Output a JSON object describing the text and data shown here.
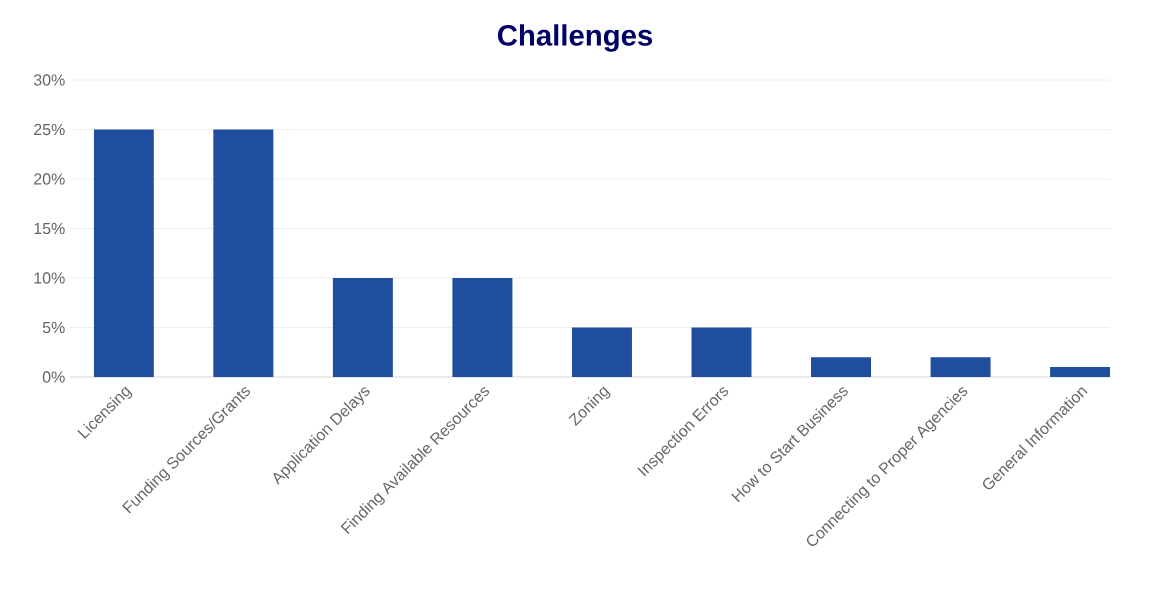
{
  "chart_data": {
    "type": "bar",
    "title": "Challenges",
    "categories": [
      "Licensing",
      "Funding Sources/Grants",
      "Application Delays",
      "Finding Available Resources",
      "Zoning",
      "Inspection Errors",
      "How to Start Business",
      "Connecting to Proper Agencies",
      "General Information"
    ],
    "values": [
      25,
      25,
      10,
      10,
      5,
      5,
      2,
      2,
      1
    ],
    "color": "#1f4e9e",
    "ylim": [
      0,
      30
    ],
    "yticks": [
      {
        "value": 0,
        "label": "0%"
      },
      {
        "value": 5,
        "label": "5%"
      },
      {
        "value": 10,
        "label": "10%"
      },
      {
        "value": 15,
        "label": "15%"
      },
      {
        "value": 20,
        "label": "20%"
      },
      {
        "value": 25,
        "label": "25%"
      },
      {
        "value": 30,
        "label": "30%"
      }
    ],
    "grid": "y"
  }
}
